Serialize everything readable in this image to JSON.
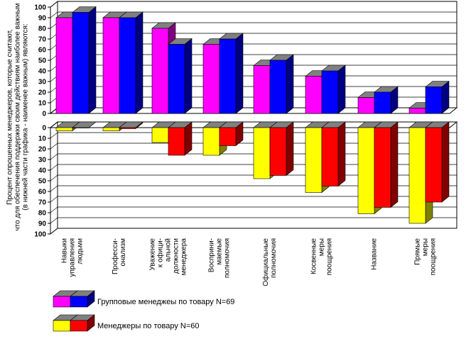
{
  "ylabel_lines": [
    "Процент опрошенных менеджеров, которые считают,",
    "что для обеспечения поддержки своим действиям наиболее важным",
    "(в нижней части графика - наименее важным) являются:"
  ],
  "categories": [
    [
      "Навыки",
      "управления",
      "людьми"
    ],
    [
      "Професси-",
      "онализм"
    ],
    [
      "Уважение",
      "к офици-",
      "альной",
      "должности",
      "менеджера"
    ],
    [
      "Восприни-",
      "маемые",
      "полномочия"
    ],
    [
      "Официальные",
      "полномочия"
    ],
    [
      "Косвенные",
      "меры",
      "поощрения"
    ],
    [
      "Название"
    ],
    [
      "Прямые",
      "меры",
      "поощрения"
    ]
  ],
  "colors": {
    "grp_front_left": "#ff00ff",
    "grp_front_right": "#0000ff",
    "grp_side_left": "#800080",
    "grp_side_right": "#000080",
    "mgr_front_left": "#ffff00",
    "mgr_front_right": "#ff0000",
    "mgr_side_left": "#808000",
    "mgr_side_right": "#800000",
    "top_face": "#808080"
  },
  "chart_data": [
    {
      "type": "bar",
      "ylim": [
        0,
        100
      ],
      "yticks": [
        0,
        10,
        20,
        30,
        40,
        50,
        60,
        70,
        80,
        90,
        100
      ],
      "series": [
        {
          "name": "Групповые менеджеы по товару N=69",
          "values": [
            90,
            90,
            80,
            65,
            45,
            35,
            15,
            5
          ]
        },
        {
          "name": "",
          "values": [
            95,
            90,
            65,
            70,
            50,
            40,
            20,
            25
          ]
        }
      ]
    },
    {
      "type": "bar",
      "ylim": [
        0,
        100
      ],
      "inverted": true,
      "yticks": [
        0,
        10,
        20,
        30,
        40,
        50,
        60,
        70,
        80,
        90,
        100
      ],
      "series": [
        {
          "name": "Менеджеры по товару N=60",
          "values": [
            3,
            3,
            14,
            26,
            48,
            61,
            81,
            90
          ]
        },
        {
          "name": "",
          "values": [
            0,
            1,
            26,
            17,
            45,
            55,
            75,
            70
          ]
        }
      ]
    }
  ],
  "legend": [
    {
      "label": "Групповые менеджеы по товару N=69",
      "left": "grp_front_left",
      "right": "grp_front_right",
      "sleft": "grp_side_left",
      "sright": "grp_side_right"
    },
    {
      "label": "Менеджеры по товару N=60",
      "left": "mgr_front_left",
      "right": "mgr_front_right",
      "sleft": "mgr_side_left",
      "sright": "mgr_side_right"
    }
  ]
}
